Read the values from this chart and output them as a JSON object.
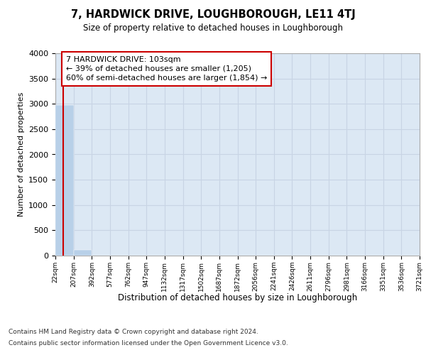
{
  "title": "7, HARDWICK DRIVE, LOUGHBOROUGH, LE11 4TJ",
  "subtitle": "Size of property relative to detached houses in Loughborough",
  "xlabel": "Distribution of detached houses by size in Loughborough",
  "ylabel": "Number of detached properties",
  "footnote1": "Contains HM Land Registry data © Crown copyright and database right 2024.",
  "footnote2": "Contains public sector information licensed under the Open Government Licence v3.0.",
  "property_label": "7 HARDWICK DRIVE: 103sqm",
  "annotation_line1": "← 39% of detached houses are smaller (1,205)",
  "annotation_line2": "60% of semi-detached houses are larger (1,854) →",
  "bar_edges": [
    22,
    207,
    392,
    577,
    762,
    947,
    1132,
    1317,
    1502,
    1687,
    1872,
    2056,
    2241,
    2426,
    2611,
    2796,
    2981,
    3166,
    3351,
    3536,
    3721
  ],
  "bar_heights": [
    2980,
    110,
    5,
    2,
    1,
    1,
    1,
    0,
    0,
    0,
    0,
    0,
    0,
    0,
    0,
    0,
    0,
    0,
    0,
    0
  ],
  "bar_color": "#b8d0e8",
  "grid_color": "#c8d4e4",
  "bg_color": "#dce8f4",
  "property_sqm": 103,
  "annotation_box_color": "#cc0000",
  "ylim_max": 4000,
  "yticks": [
    0,
    500,
    1000,
    1500,
    2000,
    2500,
    3000,
    3500,
    4000
  ]
}
